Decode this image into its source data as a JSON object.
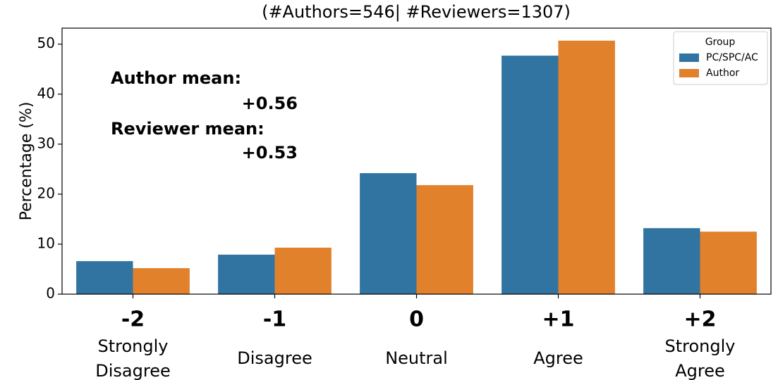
{
  "chart_data": {
    "type": "bar",
    "title": "(#Authors=546| #Reviewers=1307)",
    "y_label": "Percentage (%)",
    "categories": [
      "-2",
      "-1",
      "0",
      "+1",
      "+2"
    ],
    "category_descriptions": [
      [
        "Strongly",
        "Disagree"
      ],
      [
        "Disagree"
      ],
      [
        "Neutral"
      ],
      [
        "Agree"
      ],
      [
        "Strongly",
        "Agree"
      ]
    ],
    "series": [
      {
        "name": "PC/SPC/AC",
        "color": "#3274a1",
        "values": [
          6.6,
          7.9,
          24.2,
          47.7,
          13.2
        ]
      },
      {
        "name": "Author",
        "color": "#e1812c",
        "values": [
          5.2,
          9.3,
          21.8,
          50.7,
          12.5
        ]
      }
    ],
    "ylim": [
      0,
      53.2
    ],
    "yticks": [
      0,
      10,
      20,
      30,
      40,
      50
    ],
    "legend": {
      "title": "Group",
      "position": "upper right"
    },
    "annotations": [
      {
        "text": "Author mean:",
        "color": "#555555"
      },
      {
        "text": "+0.56",
        "color": "#e1812c"
      },
      {
        "text": "Reviewer mean:",
        "color": "#555555"
      },
      {
        "text": "+0.53",
        "color": "#1f5f9c"
      }
    ]
  }
}
